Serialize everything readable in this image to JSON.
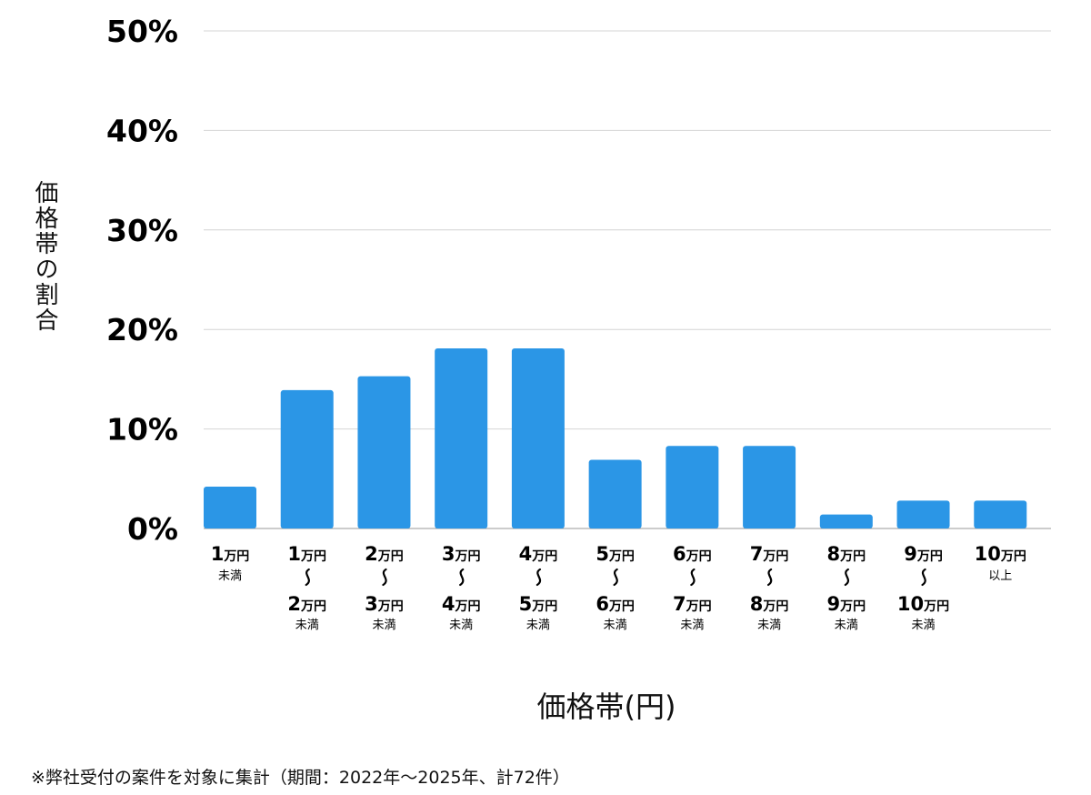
{
  "chart_data": {
    "type": "bar",
    "ylabel": "価格帯の割合",
    "xlabel": "価格帯(円)",
    "ylim": [
      0,
      50
    ],
    "yticks": [
      "0%",
      "10%",
      "20%",
      "30%",
      "40%",
      "50%"
    ],
    "grid": true,
    "bar_color": "#2b96e6",
    "categories": [
      {
        "top": [
          "1",
          "万円"
        ],
        "top_sub": "未満",
        "bottom": null,
        "bottom_sub": ""
      },
      {
        "top": [
          "1",
          "万円"
        ],
        "top_sub": "",
        "bottom": [
          "2",
          "万円"
        ],
        "bottom_sub": "未満"
      },
      {
        "top": [
          "2",
          "万円"
        ],
        "top_sub": "",
        "bottom": [
          "3",
          "万円"
        ],
        "bottom_sub": "未満"
      },
      {
        "top": [
          "3",
          "万円"
        ],
        "top_sub": "",
        "bottom": [
          "4",
          "万円"
        ],
        "bottom_sub": "未満"
      },
      {
        "top": [
          "4",
          "万円"
        ],
        "top_sub": "",
        "bottom": [
          "5",
          "万円"
        ],
        "bottom_sub": "未満"
      },
      {
        "top": [
          "5",
          "万円"
        ],
        "top_sub": "",
        "bottom": [
          "6",
          "万円"
        ],
        "bottom_sub": "未満"
      },
      {
        "top": [
          "6",
          "万円"
        ],
        "top_sub": "",
        "bottom": [
          "7",
          "万円"
        ],
        "bottom_sub": "未満"
      },
      {
        "top": [
          "7",
          "万円"
        ],
        "top_sub": "",
        "bottom": [
          "8",
          "万円"
        ],
        "bottom_sub": "未満"
      },
      {
        "top": [
          "8",
          "万円"
        ],
        "top_sub": "",
        "bottom": [
          "9",
          "万円"
        ],
        "bottom_sub": "未満"
      },
      {
        "top": [
          "9",
          "万円"
        ],
        "top_sub": "",
        "bottom": [
          "10",
          "万円"
        ],
        "bottom_sub": "未満"
      },
      {
        "top": [
          "10",
          "万円"
        ],
        "top_sub": "以上",
        "bottom": null,
        "bottom_sub": ""
      }
    ],
    "values": [
      4.2,
      13.9,
      15.3,
      18.1,
      18.1,
      6.9,
      8.3,
      8.3,
      1.4,
      2.8,
      2.8
    ]
  },
  "footnote": "※弊社受付の案件を対象に集計（期間：2022年～2025年、計72件）"
}
